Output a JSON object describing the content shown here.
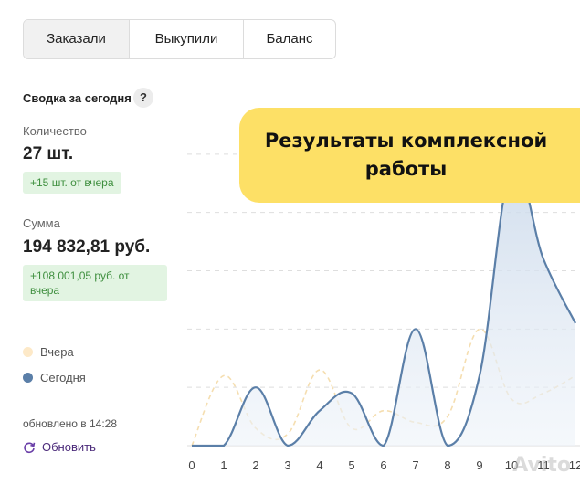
{
  "tabs": [
    "Заказали",
    "Выкупили",
    "Баланс"
  ],
  "summary": {
    "title": "Сводка за сегодня",
    "help_icon": "?",
    "quantity_label": "Количество",
    "quantity_value": "27 шт.",
    "quantity_delta": "+15 шт. от вчера",
    "sum_label": "Сумма",
    "sum_value": "194 832,81 руб.",
    "sum_delta": "+108 001,05 руб. от вчера"
  },
  "legend": {
    "yesterday": "Вчера",
    "today": "Сегодня",
    "yesterday_color": "#fde9c8",
    "today_color": "#5b7fa8"
  },
  "updated": "обновлено в 14:28",
  "refresh_label": "Обновить",
  "refresh_icon": "refresh-icon",
  "banner": "Результаты комплексной работы",
  "watermark": "Avito",
  "chart_data": {
    "type": "area",
    "x": [
      0,
      1,
      2,
      3,
      4,
      5,
      6,
      7,
      8,
      9,
      10,
      11,
      12
    ],
    "x_tick_labels": [
      "0",
      "1",
      "2",
      "3",
      "4",
      "5",
      "6",
      "7",
      "8",
      "9",
      "10",
      "11",
      "12"
    ],
    "series": [
      {
        "name": "Сегодня",
        "color": "#5b7fa8",
        "values": [
          0,
          0,
          1,
          0,
          0.6,
          0.9,
          0,
          2,
          0,
          1.2,
          4.8,
          3.2,
          2.1
        ]
      },
      {
        "name": "Вчера",
        "color": "#f5deb0",
        "values": [
          0,
          1.2,
          0.3,
          0.2,
          1.3,
          0.3,
          0.6,
          0.4,
          0.5,
          2.0,
          0.8,
          0.9,
          1.2
        ]
      }
    ],
    "ylim": [
      0,
      6
    ],
    "grid": true
  }
}
